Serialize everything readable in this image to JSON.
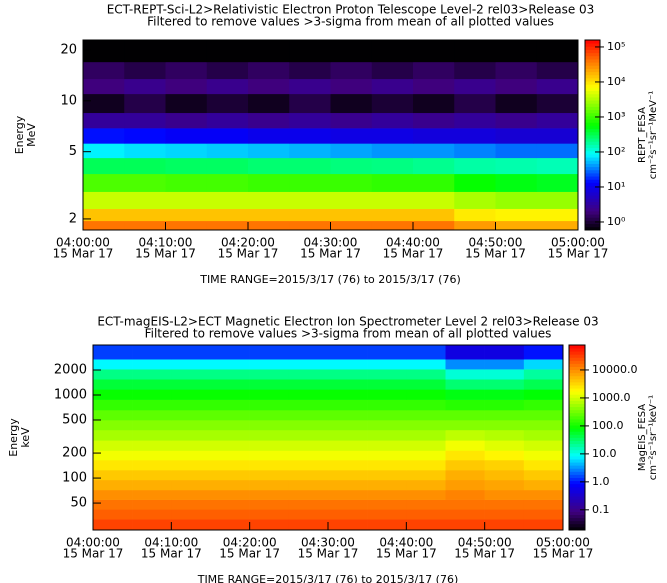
{
  "chart_data": [
    {
      "type": "spectrogram",
      "title": "ECT-REPT-Sci-L2>Relativistic Electron Proton Telescope Level-2  rel03>Release 03",
      "subtitle": "Filtered to remove values >3-sigma from mean of all plotted values",
      "ylabel": "Energy",
      "yunit": "MeV",
      "colorbar_label": "REPT_FESA",
      "colorbar_unit": "cm⁻²s⁻¹sr⁻¹MeV⁻¹",
      "time_range": "TIME RANGE=2015/3/17 (76) to 2015/3/17 (76)",
      "xlim": [
        "04:00:00",
        "05:00:00"
      ],
      "xticks": [
        "04:00:00",
        "04:10:00",
        "04:20:00",
        "04:30:00",
        "04:40:00",
        "04:50:00",
        "05:00:00"
      ],
      "xtick_dates": [
        "15 Mar 17",
        "15 Mar 17",
        "15 Mar 17",
        "15 Mar 17",
        "15 Mar 17",
        "15 Mar 17",
        "15 Mar 17"
      ],
      "ylim": [
        1.72,
        22.9
      ],
      "yticks": [
        2,
        5,
        10,
        20
      ],
      "ylog": true,
      "clim": [
        0.59,
        158000
      ],
      "clog": true,
      "cticks": [
        {
          "value": 1,
          "label": "10⁰"
        },
        {
          "value": 10,
          "label": "10¹"
        },
        {
          "value": 100,
          "label": "10²"
        },
        {
          "value": 1000,
          "label": "10³"
        },
        {
          "value": 10000,
          "label": "10⁴"
        },
        {
          "value": 100000,
          "label": "10⁵"
        }
      ],
      "x": [
        "04:00:00",
        "04:05:00",
        "04:10:00",
        "04:15:00",
        "04:20:00",
        "04:25:00",
        "04:30:00",
        "04:35:00",
        "04:40:00",
        "04:45:00",
        "04:50:00",
        "04:55:00",
        "05:00:00"
      ],
      "y": [
        1.72,
        1.95,
        2.3,
        2.9,
        3.7,
        4.6,
        5.6,
        6.9,
        8.5,
        11,
        13.5,
        17,
        22.9
      ],
      "values": [
        [
          40000,
          40000,
          40000,
          40000,
          40000,
          40000,
          40000,
          40000,
          40000,
          25000,
          20000,
          20000
        ],
        [
          15000,
          15000,
          15000,
          15000,
          15000,
          15000,
          15000,
          15000,
          15000,
          9000,
          8000,
          8000
        ],
        [
          4000,
          4000,
          4000,
          4000,
          4000,
          4000,
          4000,
          4000,
          4000,
          3000,
          2500,
          2500
        ],
        [
          1200,
          1200,
          1100,
          1100,
          1000,
          1000,
          1000,
          900,
          900,
          600,
          500,
          450
        ],
        [
          300,
          300,
          280,
          280,
          250,
          250,
          230,
          220,
          200,
          170,
          160,
          150
        ],
        [
          80,
          70,
          65,
          60,
          55,
          50,
          45,
          40,
          40,
          35,
          30,
          30
        ],
        [
          15,
          14,
          12,
          12,
          10,
          10,
          9,
          9,
          8,
          8,
          7,
          7
        ],
        [
          3,
          3,
          2.5,
          3,
          2.5,
          3,
          2.5,
          3,
          2.5,
          3,
          2.5,
          3
        ],
        [
          0.8,
          1.2,
          0.8,
          1,
          0.8,
          1.2,
          0.8,
          1,
          0.8,
          1.2,
          0.8,
          1
        ],
        [
          2,
          2.5,
          2,
          2.5,
          2,
          2.5,
          2,
          2.5,
          2,
          2.5,
          2,
          2.5
        ],
        [
          1.5,
          1.2,
          1.5,
          1.2,
          1.5,
          1.2,
          1.5,
          1.2,
          1.5,
          1.2,
          1.5,
          1.2
        ],
        [
          0.6,
          0.6,
          0.6,
          0.6,
          0.6,
          0.6,
          0.6,
          0.6,
          0.6,
          0.6,
          0.6,
          0.6
        ]
      ]
    },
    {
      "type": "spectrogram",
      "title": "ECT-magEIS-L2>ECT Magnetic Electron Ion Spectrometer Level 2  rel03>Release 03",
      "subtitle": "Filtered to remove values >3-sigma from mean of all plotted values",
      "ylabel": "Energy",
      "yunit": "keV",
      "colorbar_label": "MagEIS_FESA",
      "colorbar_unit": "cm⁻²s⁻¹sr⁻¹keV⁻¹",
      "time_range": "TIME RANGE=2015/3/17 (76) to 2015/3/17 (76)",
      "xlim": [
        "04:00:00",
        "05:00:00"
      ],
      "xticks": [
        "04:00:00",
        "04:10:00",
        "04:20:00",
        "04:30:00",
        "04:40:00",
        "04:50:00",
        "05:00:00"
      ],
      "xtick_dates": [
        "15 Mar 17",
        "15 Mar 17",
        "15 Mar 17",
        "15 Mar 17",
        "15 Mar 17",
        "15 Mar 17",
        "15 Mar 17"
      ],
      "ylim": [
        23.7,
        4000
      ],
      "yticks": [
        50,
        100,
        200,
        500,
        1000,
        2000
      ],
      "ylog": true,
      "clim": [
        0.019,
        78000
      ],
      "clog": true,
      "cticks": [
        0.1,
        {
          "value": 1,
          "label": "1.0"
        },
        {
          "value": 10,
          "label": "10.0"
        },
        {
          "value": 100,
          "label": "100.0"
        },
        {
          "value": 1000,
          "label": "1000.0"
        },
        {
          "value": 10000,
          "label": "10000.0"
        }
      ],
      "x": [
        "04:00:00",
        "04:05:00",
        "04:10:00",
        "04:15:00",
        "04:20:00",
        "04:25:00",
        "04:30:00",
        "04:35:00",
        "04:40:00",
        "04:45:00",
        "04:50:00",
        "04:55:00",
        "05:00:00"
      ],
      "y": [
        23.7,
        32,
        42,
        55,
        72,
        95,
        125,
        165,
        215,
        285,
        380,
        500,
        660,
        880,
        1170,
        1550,
        2050,
        2700,
        4000
      ],
      "values": [
        [
          30000,
          30000,
          30000,
          30000,
          30000,
          30000,
          30000,
          30000,
          30000,
          30000,
          30000,
          30000
        ],
        [
          20000,
          20000,
          20000,
          20000,
          20000,
          20000,
          20000,
          20000,
          20000,
          20000,
          20000,
          20000
        ],
        [
          15000,
          15000,
          15000,
          15000,
          15000,
          15000,
          15000,
          15000,
          15000,
          15000,
          15000,
          15000
        ],
        [
          10000,
          10000,
          10000,
          10000,
          10000,
          10000,
          10000,
          10000,
          10000,
          12000,
          10000,
          10000
        ],
        [
          6000,
          6000,
          6000,
          6000,
          6000,
          6000,
          6000,
          6000,
          6000,
          8000,
          7000,
          6000
        ],
        [
          4000,
          4000,
          4000,
          4000,
          4000,
          4000,
          4000,
          4000,
          4000,
          6000,
          5000,
          4000
        ],
        [
          2500,
          2500,
          2500,
          2500,
          2500,
          2500,
          2500,
          2500,
          2500,
          4000,
          3500,
          2500
        ],
        [
          1500,
          1500,
          1500,
          1500,
          1500,
          1500,
          1500,
          1500,
          1500,
          2500,
          2000,
          1500
        ],
        [
          1000,
          1000,
          1000,
          1000,
          1000,
          1000,
          1000,
          1000,
          1000,
          1500,
          1200,
          1000
        ],
        [
          600,
          600,
          600,
          600,
          600,
          600,
          600,
          600,
          600,
          800,
          700,
          600
        ],
        [
          400,
          400,
          400,
          400,
          400,
          400,
          400,
          400,
          400,
          400,
          400,
          400
        ],
        [
          250,
          250,
          250,
          250,
          250,
          250,
          250,
          250,
          250,
          250,
          250,
          250
        ],
        [
          150,
          150,
          150,
          150,
          150,
          150,
          150,
          150,
          150,
          130,
          130,
          150
        ],
        [
          90,
          90,
          90,
          90,
          90,
          90,
          90,
          90,
          90,
          70,
          70,
          80
        ],
        [
          50,
          50,
          50,
          50,
          50,
          50,
          50,
          50,
          50,
          30,
          30,
          40
        ],
        [
          25,
          25,
          25,
          25,
          25,
          25,
          25,
          25,
          25,
          12,
          12,
          20
        ],
        [
          8,
          8,
          8,
          8,
          8,
          8,
          8,
          8,
          8,
          3,
          3,
          6
        ],
        [
          1.5,
          1.5,
          1.5,
          1.5,
          1.5,
          1.5,
          1.5,
          1.5,
          1.5,
          0.5,
          0.5,
          1
        ]
      ]
    }
  ]
}
